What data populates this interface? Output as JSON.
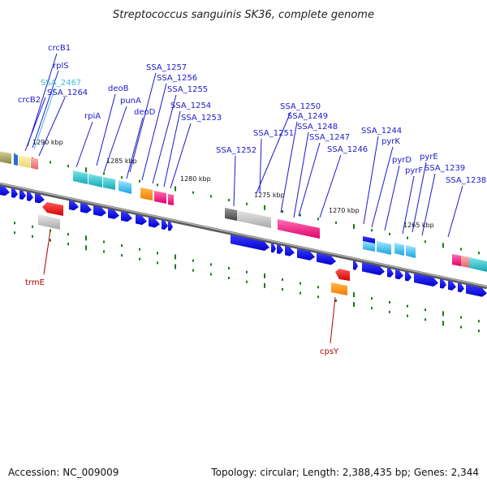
{
  "title": "Streptococcus sanguinis SK36, complete genome",
  "footer": {
    "accession": "Accession: NC_009009",
    "summary": "Topology: circular; Length: 2,388,435 bp; Genes: 2,344"
  },
  "colors": {
    "backbone": "#888888",
    "gene_forward": "#0000e6",
    "tick": "#1a7a1a",
    "label_blue": "#1a1acc",
    "label_light": "#3fb6e6",
    "label_red": "#b00000"
  },
  "kbp_ticks": [
    "1290 kbp",
    "1285 kbp",
    "1280 kbp",
    "1275 kbp",
    "1270 kbp",
    "1265 kbp"
  ],
  "upper_labels": [
    {
      "text": "crcB1",
      "style": "blue"
    },
    {
      "text": "rplS",
      "style": "blue"
    },
    {
      "text": "SSA_2467",
      "style": "light"
    },
    {
      "text": "crcB2",
      "style": "blue"
    },
    {
      "text": "SSA_1264",
      "style": "blue"
    },
    {
      "text": "SSA_1257",
      "style": "blue"
    },
    {
      "text": "SSA_1256",
      "style": "blue"
    },
    {
      "text": "deoB",
      "style": "blue"
    },
    {
      "text": "SSA_1255",
      "style": "blue"
    },
    {
      "text": "punA",
      "style": "blue"
    },
    {
      "text": "rpiA",
      "style": "blue"
    },
    {
      "text": "deoD",
      "style": "blue"
    },
    {
      "text": "SSA_1254",
      "style": "blue"
    },
    {
      "text": "SSA_1253",
      "style": "blue"
    },
    {
      "text": "SSA_1250",
      "style": "blue"
    },
    {
      "text": "SSA_1249",
      "style": "blue"
    },
    {
      "text": "SSA_1248",
      "style": "blue"
    },
    {
      "text": "SSA_1251",
      "style": "blue"
    },
    {
      "text": "SSA_1247",
      "style": "blue"
    },
    {
      "text": "SSA_1246",
      "style": "blue"
    },
    {
      "text": "SSA_1252",
      "style": "blue"
    },
    {
      "text": "SSA_1244",
      "style": "blue"
    },
    {
      "text": "pyrK",
      "style": "blue"
    },
    {
      "text": "pyrE",
      "style": "blue"
    },
    {
      "text": "pyrD",
      "style": "blue"
    },
    {
      "text": "pyrF",
      "style": "blue"
    },
    {
      "text": "SSA_1239",
      "style": "blue"
    },
    {
      "text": "SSA_1238",
      "style": "blue"
    }
  ],
  "lower_labels": [
    {
      "text": "trmE",
      "style": "red"
    },
    {
      "text": "cpsY",
      "style": "red"
    }
  ]
}
